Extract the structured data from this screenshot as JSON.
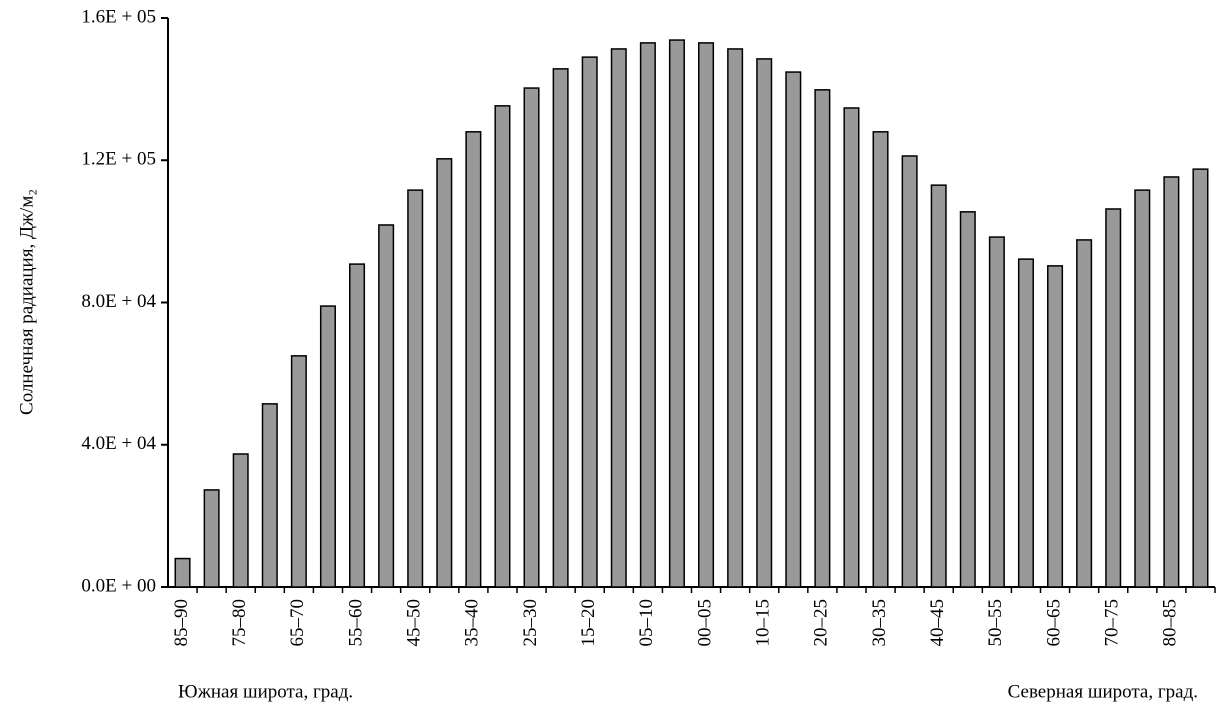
{
  "chart_data": {
    "type": "bar",
    "y_label": "Солнечная радиация, Дж/м₂",
    "x_label_left": "Южная широта, град.",
    "x_label_right": "Северная широта, град.",
    "categories": [
      "85–90",
      null,
      "75–80",
      null,
      "65–70",
      null,
      "55–60",
      null,
      "45–50",
      null,
      "35–40",
      null,
      "25–30",
      null,
      "15–20",
      null,
      "05–10",
      null,
      "00–05",
      null,
      "10–15",
      null,
      "20–25",
      null,
      "30–35",
      null,
      "40–45",
      null,
      "50–55",
      null,
      "60–65",
      null,
      "70–75",
      null,
      "80–85",
      null
    ],
    "values": [
      8000,
      27300,
      37400,
      51500,
      65000,
      79000,
      90800,
      101800,
      111600,
      120400,
      128000,
      135300,
      140300,
      145700,
      149000,
      151300,
      153000,
      153800,
      153000,
      151300,
      148500,
      144800,
      139800,
      134700,
      128000,
      121200,
      113000,
      105500,
      98400,
      92200,
      90300,
      97600,
      106300,
      111600,
      115300,
      117500
    ],
    "color": "#999999",
    "ylim": [
      0,
      160000
    ],
    "yticks": [
      {
        "value": 0,
        "label": "0.0E + 00"
      },
      {
        "value": 40000,
        "label": "4.0E + 04"
      },
      {
        "value": 80000,
        "label": "8.0E + 04"
      },
      {
        "value": 120000,
        "label": "1.2E + 05"
      },
      {
        "value": 160000,
        "label": "1.6E + 05"
      }
    ],
    "grid": false
  }
}
